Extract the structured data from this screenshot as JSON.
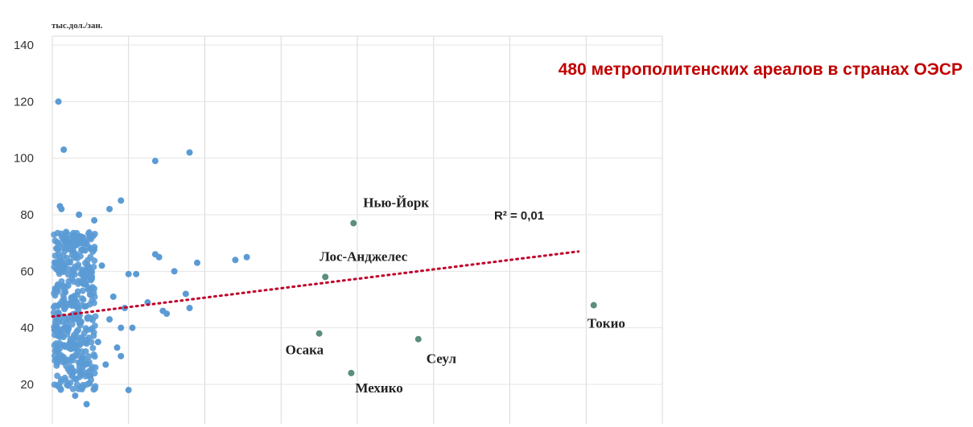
{
  "chart_data": {
    "type": "scatter",
    "title": "480 метрополитенских ареалов в странах ОЭСР",
    "ylabel": "тыс.дол./зан.",
    "xlabel": "",
    "ylim": [
      0,
      140
    ],
    "yticks": [
      140,
      120,
      100,
      80,
      60,
      40,
      20
    ],
    "xlim": [
      0,
      8
    ],
    "grid": true,
    "colors": {
      "points": "#5b9bd5",
      "highlight": "#5a8f7b",
      "trend": "#c0002a"
    },
    "trendline": {
      "x": [
        0,
        6.9
      ],
      "y": [
        44,
        67
      ],
      "r2_label": "R² = 0,01"
    },
    "named_points": [
      {
        "label": "Нью-Йорк",
        "x": 3.95,
        "y": 77
      },
      {
        "label": "Лос-Анджелес",
        "x": 3.58,
        "y": 58
      },
      {
        "label": "Осака",
        "x": 3.5,
        "y": 38
      },
      {
        "label": "Сеул",
        "x": 4.8,
        "y": 36
      },
      {
        "label": "Мехико",
        "x": 3.92,
        "y": 24
      },
      {
        "label": "Токио",
        "x": 7.1,
        "y": 48
      }
    ],
    "points": [
      [
        0.08,
        120
      ],
      [
        0.15,
        103
      ],
      [
        0.1,
        83
      ],
      [
        0.12,
        82
      ],
      [
        0.35,
        80
      ],
      [
        0.55,
        78
      ],
      [
        0.75,
        82
      ],
      [
        0.9,
        85
      ],
      [
        1.35,
        99
      ],
      [
        1.8,
        102
      ],
      [
        1.35,
        66
      ],
      [
        1.4,
        65
      ],
      [
        1.6,
        60
      ],
      [
        1.25,
        49
      ],
      [
        1.45,
        46
      ],
      [
        1.5,
        45
      ],
      [
        1.8,
        47
      ],
      [
        1.75,
        52
      ],
      [
        1.9,
        63
      ],
      [
        2.4,
        64
      ],
      [
        2.55,
        65
      ],
      [
        1.0,
        59
      ],
      [
        1.1,
        59
      ],
      [
        0.95,
        47
      ],
      [
        0.9,
        40
      ],
      [
        1.05,
        40
      ],
      [
        1.0,
        18
      ],
      [
        1.15,
        2
      ],
      [
        0.9,
        30
      ],
      [
        0.85,
        33
      ],
      [
        0.7,
        27
      ],
      [
        0.5,
        23
      ],
      [
        0.45,
        13
      ],
      [
        0.3,
        16
      ],
      [
        0.6,
        35
      ],
      [
        0.75,
        43
      ],
      [
        0.8,
        51
      ],
      [
        0.65,
        62
      ],
      [
        0.5,
        68
      ],
      [
        0.4,
        72
      ]
    ]
  }
}
